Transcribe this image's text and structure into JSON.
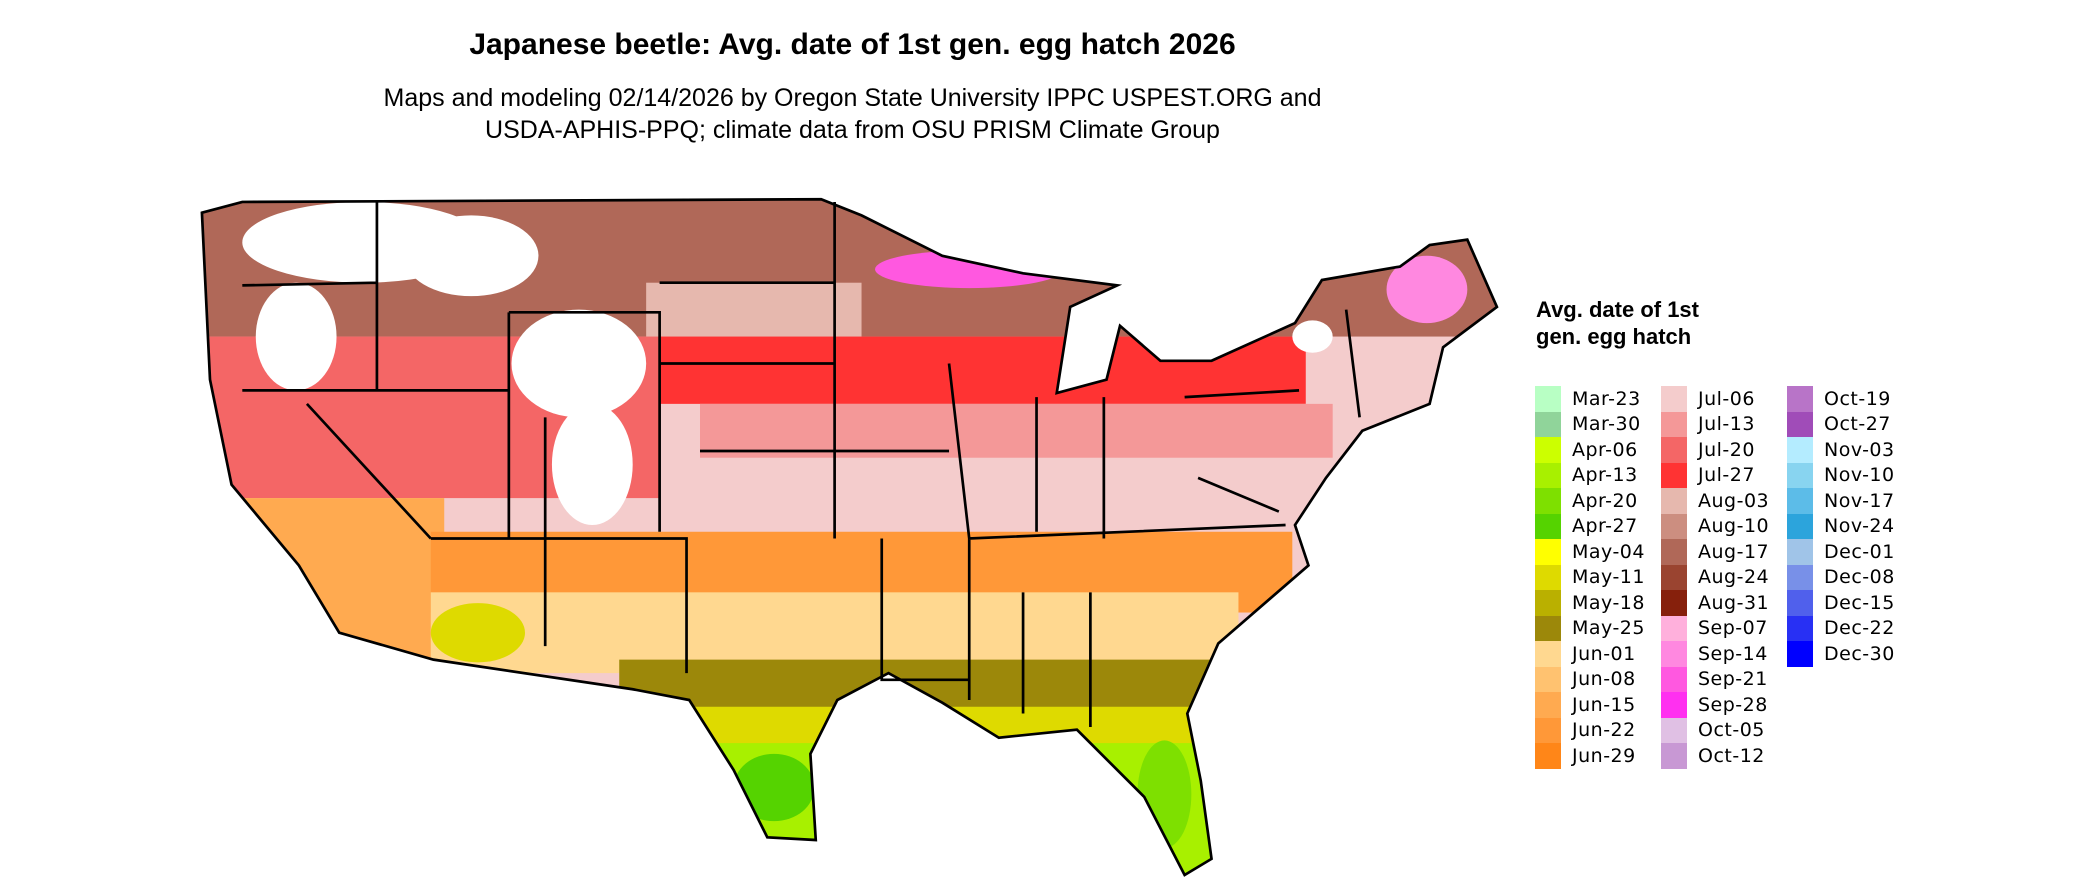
{
  "title": "Japanese beetle: Avg. date of 1st gen. egg hatch 2026",
  "subtitle_lines": [
    "Maps and modeling 02/14/2026 by Oregon State University IPPC USPEST.ORG and",
    "USDA-APHIS-PPQ; climate data from OSU PRISM Climate Group"
  ],
  "legend": {
    "title": "Avg. date of 1st gen. egg hatch",
    "columns": [
      [
        {
          "label": "Mar-23",
          "color": "#B8FFC4"
        },
        {
          "label": "Mar-30",
          "color": "#90D49A"
        },
        {
          "label": "Apr-06",
          "color": "#CCFF00"
        },
        {
          "label": "Apr-13",
          "color": "#A8F000"
        },
        {
          "label": "Apr-20",
          "color": "#7EE000"
        },
        {
          "label": "Apr-27",
          "color": "#55D300"
        },
        {
          "label": "May-04",
          "color": "#FFFF00"
        },
        {
          "label": "May-11",
          "color": "#DEDA00"
        },
        {
          "label": "May-18",
          "color": "#BAB000"
        },
        {
          "label": "May-25",
          "color": "#9C880A"
        },
        {
          "label": "Jun-01",
          "color": "#FFD890"
        },
        {
          "label": "Jun-08",
          "color": "#FFC270"
        },
        {
          "label": "Jun-15",
          "color": "#FFAA50"
        },
        {
          "label": "Jun-22",
          "color": "#FF9838"
        },
        {
          "label": "Jun-29",
          "color": "#FF8618"
        }
      ],
      [
        {
          "label": "Jul-06",
          "color": "#F4CCCC"
        },
        {
          "label": "Jul-13",
          "color": "#F49898"
        },
        {
          "label": "Jul-20",
          "color": "#F46666"
        },
        {
          "label": "Jul-27",
          "color": "#FF3333"
        },
        {
          "label": "Aug-03",
          "color": "#E6B8AE"
        },
        {
          "label": "Aug-10",
          "color": "#CC8E80"
        },
        {
          "label": "Aug-17",
          "color": "#B06858"
        },
        {
          "label": "Aug-24",
          "color": "#9A4430"
        },
        {
          "label": "Aug-31",
          "color": "#86200C"
        },
        {
          "label": "Sep-07",
          "color": "#FFB0DC"
        },
        {
          "label": "Sep-14",
          "color": "#FF88E0"
        },
        {
          "label": "Sep-21",
          "color": "#FF58E0"
        },
        {
          "label": "Sep-28",
          "color": "#FF30F0"
        },
        {
          "label": "Oct-05",
          "color": "#E0C0E4"
        },
        {
          "label": "Oct-12",
          "color": "#C898D4"
        }
      ],
      [
        {
          "label": "Oct-19",
          "color": "#B874C8"
        },
        {
          "label": "Oct-27",
          "color": "#A04CB8"
        },
        {
          "label": "Nov-03",
          "color": "#B4ECFF"
        },
        {
          "label": "Nov-10",
          "color": "#88D4F0"
        },
        {
          "label": "Nov-17",
          "color": "#5CBCE8"
        },
        {
          "label": "Nov-24",
          "color": "#2CA4DC"
        },
        {
          "label": "Dec-01",
          "color": "#A0C4E8"
        },
        {
          "label": "Dec-08",
          "color": "#7890E8"
        },
        {
          "label": "Dec-15",
          "color": "#5060EC"
        },
        {
          "label": "Dec-22",
          "color": "#2830F4"
        },
        {
          "label": "Dec-30",
          "color": "#0000FF"
        }
      ]
    ]
  }
}
